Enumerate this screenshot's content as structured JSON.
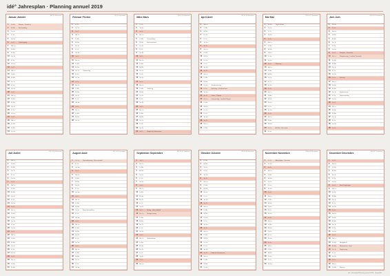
{
  "page": {
    "title": "idé° Jahresplan · Planning annuel 2019",
    "footer": "idé° Jahresplan/Planning annuel 2019 · Format A1"
  },
  "months": [
    {
      "name": "Januar Janvier",
      "info": "KW 1-5 Semaines",
      "start": 1,
      "days": 31,
      "notes": {
        "1": "Neujahr · Nouvel an",
        "2": "Berchtoldstag",
        "6": "Dreikönigstag"
      },
      "hol": [
        1,
        2
      ]
    },
    {
      "name": "Februar Février",
      "info": "KW 5-9 Semaines",
      "start": 4,
      "days": 28,
      "notes": {
        "14": "Valentinstag"
      },
      "hol": []
    },
    {
      "name": "März Mars",
      "info": "KW 9-13 Semaines",
      "start": 4,
      "days": 31,
      "notes": {
        "5": "Fasnachtstag",
        "6": "Aschermittwoch",
        "19": "Josefstag",
        "31": "Beginn der Sommerzeit"
      },
      "hol": []
    },
    {
      "name": "April Avril",
      "info": "KW 14-18 Semaines",
      "start": 0,
      "days": 30,
      "notes": {
        "18": "Gründonnerstag",
        "19": "Karfreitag · Vendredi Saint",
        "21": "Ostern · Pâques",
        "22": "Ostermontag · Lundi de Pâques"
      },
      "hol": [
        19,
        22
      ]
    },
    {
      "name": "Mai Mai",
      "info": "KW 18-22 Semaines",
      "start": 2,
      "days": 31,
      "notes": {
        "1": "Tag der Arbeit",
        "12": "Muttertag",
        "30": "Auffahrt · Ascension"
      },
      "hol": [
        30
      ]
    },
    {
      "name": "Juni Juin",
      "info": "KW 22-26 Semaines",
      "start": 5,
      "days": 30,
      "notes": {
        "9": "Pfingsten · Pentecôte",
        "10": "Pfingstmontag · Lundi de Pentecôte",
        "16": "Vatertag",
        "20": "Fronleichnam",
        "21": "Sommeranfang"
      },
      "hol": [
        10
      ]
    },
    {
      "name": "Juli Juillet",
      "info": "KW 27-31 Semaines",
      "start": 0,
      "days": 31,
      "notes": {},
      "hol": []
    },
    {
      "name": "August Août",
      "info": "KW 31-35 Semaines",
      "start": 3,
      "days": 31,
      "notes": {
        "1": "Nationalfeiertag · Fête nationale",
        "15": "Mariä Himmelfahrt"
      },
      "hol": [
        1
      ]
    },
    {
      "name": "September Septembre",
      "info": "KW 35-40 Semaines",
      "start": 6,
      "days": 30,
      "notes": {
        "15": "Bettag · Jeûne fédéral",
        "16": "Bettagsmontag",
        "23": "Herbstanfang"
      },
      "hol": [
        16
      ]
    },
    {
      "name": "Oktober Octobre",
      "info": "KW 40-44 Semaines",
      "start": 1,
      "days": 31,
      "notes": {
        "27": "Ende der Sommerzeit"
      },
      "hol": []
    },
    {
      "name": "November Novembre",
      "info": "KW 44-48 Semaines",
      "start": 4,
      "days": 30,
      "notes": {
        "1": "Allerheiligen · Toussaint"
      },
      "hol": [
        1
      ]
    },
    {
      "name": "Dezember Décembre",
      "info": "KW 48-1 Semaines",
      "start": 6,
      "days": 31,
      "notes": {
        "8": "Mariä Empfängnis",
        "24": "Heiligabend",
        "25": "Weihnachten · Noël",
        "26": "Stephanstag",
        "31": "Silvester"
      },
      "hol": [
        25,
        26
      ]
    }
  ],
  "weekdays": [
    "Mo Lu",
    "Di Ma",
    "Mi Me",
    "Do Je",
    "Fr Ve",
    "Sa Sa",
    "So Di"
  ]
}
